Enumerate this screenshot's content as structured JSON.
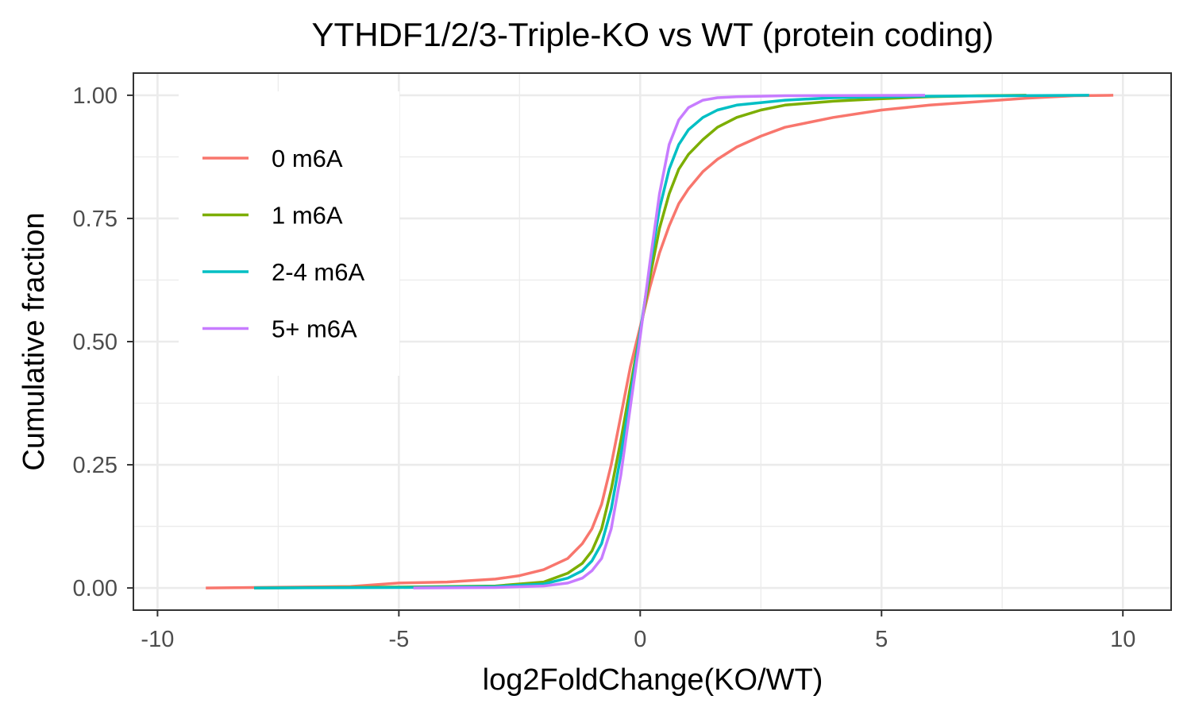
{
  "chart_data": {
    "type": "line",
    "title": "YTHDF1/2/3-Triple-KO vs WT (protein coding)",
    "xlabel": "log2FoldChange(KO/WT)",
    "ylabel": "Cumulative fraction",
    "xlim": [
      -10.5,
      11.0
    ],
    "ylim": [
      -0.045,
      1.045
    ],
    "x_ticks": [
      -10,
      -5,
      0,
      5,
      10
    ],
    "x_tick_labels": [
      "-10",
      "-5",
      "0",
      "5",
      "10"
    ],
    "y_ticks": [
      0,
      0.25,
      0.5,
      0.75,
      1.0
    ],
    "y_tick_labels": [
      "0.00",
      "0.25",
      "0.50",
      "0.75",
      "1.00"
    ],
    "grid": true,
    "legend_position": "top-left",
    "series": [
      {
        "name": "0 m6A",
        "color": "#F8766D",
        "points": [
          [
            -9.0,
            0.0
          ],
          [
            -6.0,
            0.003
          ],
          [
            -5.0,
            0.01
          ],
          [
            -4.0,
            0.012
          ],
          [
            -3.0,
            0.018
          ],
          [
            -2.5,
            0.025
          ],
          [
            -2.0,
            0.037
          ],
          [
            -1.5,
            0.06
          ],
          [
            -1.2,
            0.09
          ],
          [
            -1.0,
            0.12
          ],
          [
            -0.8,
            0.17
          ],
          [
            -0.6,
            0.25
          ],
          [
            -0.4,
            0.35
          ],
          [
            -0.2,
            0.45
          ],
          [
            0.0,
            0.53
          ],
          [
            0.2,
            0.61
          ],
          [
            0.4,
            0.68
          ],
          [
            0.6,
            0.735
          ],
          [
            0.8,
            0.78
          ],
          [
            1.0,
            0.81
          ],
          [
            1.3,
            0.845
          ],
          [
            1.6,
            0.87
          ],
          [
            2.0,
            0.895
          ],
          [
            2.5,
            0.917
          ],
          [
            3.0,
            0.935
          ],
          [
            3.5,
            0.945
          ],
          [
            4.0,
            0.955
          ],
          [
            5.0,
            0.97
          ],
          [
            6.0,
            0.98
          ],
          [
            7.0,
            0.987
          ],
          [
            8.0,
            0.994
          ],
          [
            9.0,
            0.999
          ],
          [
            9.8,
            1.0
          ]
        ]
      },
      {
        "name": "1 m6A",
        "color": "#7CAE00",
        "points": [
          [
            -8.0,
            0.0
          ],
          [
            -5.0,
            0.002
          ],
          [
            -3.0,
            0.004
          ],
          [
            -2.0,
            0.012
          ],
          [
            -1.5,
            0.03
          ],
          [
            -1.2,
            0.05
          ],
          [
            -1.0,
            0.075
          ],
          [
            -0.8,
            0.12
          ],
          [
            -0.6,
            0.2
          ],
          [
            -0.4,
            0.3
          ],
          [
            -0.2,
            0.41
          ],
          [
            0.0,
            0.52
          ],
          [
            0.2,
            0.63
          ],
          [
            0.4,
            0.73
          ],
          [
            0.6,
            0.8
          ],
          [
            0.8,
            0.85
          ],
          [
            1.0,
            0.88
          ],
          [
            1.3,
            0.91
          ],
          [
            1.6,
            0.935
          ],
          [
            2.0,
            0.955
          ],
          [
            2.5,
            0.97
          ],
          [
            3.0,
            0.98
          ],
          [
            4.0,
            0.988
          ],
          [
            5.0,
            0.993
          ],
          [
            6.0,
            0.997
          ],
          [
            7.0,
            0.999
          ],
          [
            8.0,
            1.0
          ]
        ]
      },
      {
        "name": "2-4 m6A",
        "color": "#00BFC4",
        "points": [
          [
            -8.0,
            0.0
          ],
          [
            -5.0,
            0.001
          ],
          [
            -3.0,
            0.003
          ],
          [
            -2.0,
            0.008
          ],
          [
            -1.5,
            0.02
          ],
          [
            -1.2,
            0.035
          ],
          [
            -1.0,
            0.055
          ],
          [
            -0.8,
            0.09
          ],
          [
            -0.6,
            0.16
          ],
          [
            -0.4,
            0.27
          ],
          [
            -0.2,
            0.39
          ],
          [
            0.0,
            0.52
          ],
          [
            0.2,
            0.65
          ],
          [
            0.4,
            0.77
          ],
          [
            0.6,
            0.85
          ],
          [
            0.8,
            0.9
          ],
          [
            1.0,
            0.93
          ],
          [
            1.3,
            0.955
          ],
          [
            1.6,
            0.97
          ],
          [
            2.0,
            0.98
          ],
          [
            3.0,
            0.99
          ],
          [
            4.0,
            0.995
          ],
          [
            6.0,
            0.998
          ],
          [
            9.3,
            1.0
          ]
        ]
      },
      {
        "name": "5+ m6A",
        "color": "#C77CFF",
        "points": [
          [
            -4.7,
            0.0
          ],
          [
            -3.0,
            0.001
          ],
          [
            -2.0,
            0.004
          ],
          [
            -1.5,
            0.01
          ],
          [
            -1.2,
            0.02
          ],
          [
            -1.0,
            0.035
          ],
          [
            -0.8,
            0.06
          ],
          [
            -0.6,
            0.12
          ],
          [
            -0.4,
            0.23
          ],
          [
            -0.2,
            0.37
          ],
          [
            0.0,
            0.51
          ],
          [
            0.2,
            0.66
          ],
          [
            0.4,
            0.8
          ],
          [
            0.6,
            0.9
          ],
          [
            0.8,
            0.95
          ],
          [
            1.0,
            0.975
          ],
          [
            1.3,
            0.99
          ],
          [
            1.6,
            0.995
          ],
          [
            2.0,
            0.997
          ],
          [
            3.0,
            0.999
          ],
          [
            5.9,
            1.0
          ]
        ]
      }
    ]
  }
}
